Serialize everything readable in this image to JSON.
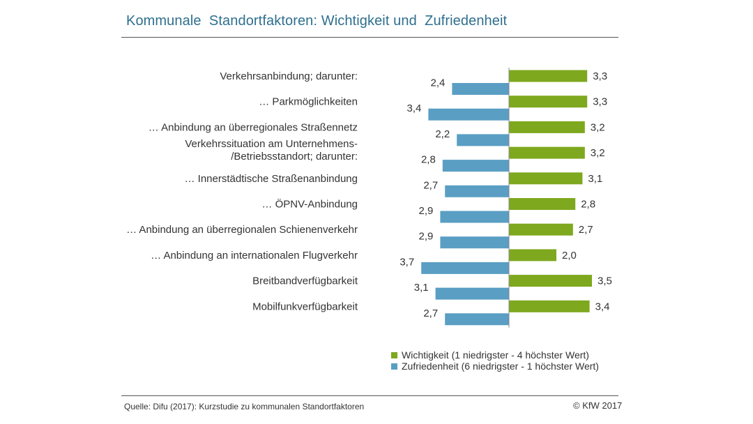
{
  "chart_data": {
    "type": "bar",
    "orientation": "horizontal-diverging",
    "title": "Kommunale  Standortfaktoren: Wichtigkeit und  Zufriedenheit",
    "categories": [
      [
        "Verkehrsanbindung; darunter:"
      ],
      [
        "… Parkmöglichkeiten"
      ],
      [
        "… Anbindung an überregionales Straßennetz"
      ],
      [
        "Verkehrssituation am Unternehmens-",
        "/Betriebsstandort; darunter:"
      ],
      [
        "… Innerstädtische  Straßenanbindung"
      ],
      [
        "… ÖPNV-Anbindung"
      ],
      [
        "… Anbindung an überregionalen Schienenverkehr"
      ],
      [
        "… Anbindung an internationalen Flugverkehr"
      ],
      [
        "Breitbandverfügbarkeit"
      ],
      [
        "Mobilfunkverfügbarkeit"
      ]
    ],
    "series": [
      {
        "name": "Wichtigkeit (1 niedrigster - 4 höchster Wert)",
        "color": "#7ea81e",
        "direction": "right",
        "values": [
          3.3,
          3.3,
          3.2,
          3.2,
          3.1,
          2.8,
          2.7,
          2.0,
          3.5,
          3.4
        ],
        "labels": [
          "3,3",
          "3,3",
          "3,2",
          "3,2",
          "3,1",
          "2,8",
          "2,7",
          "2,0",
          "3,5",
          "3,4"
        ]
      },
      {
        "name": "Zufriedenheit  (6 niedrigster - 1 höchster Wert)",
        "color": "#5a9ec3",
        "direction": "left",
        "values": [
          2.4,
          3.4,
          2.2,
          2.8,
          2.7,
          2.9,
          2.9,
          3.7,
          3.1,
          2.7
        ],
        "labels": [
          "2,4",
          "3,4",
          "2,2",
          "2,8",
          "2,7",
          "2,9",
          "2,9",
          "3,7",
          "3,1",
          "2,7"
        ]
      }
    ],
    "xlim": [
      -4,
      4
    ],
    "legend_position": "bottom-right"
  },
  "footer": {
    "source": "Quelle: Difu (2017): Kurzstudie zu kommunalen Standortfaktoren",
    "copyright": "© KfW 2017"
  }
}
